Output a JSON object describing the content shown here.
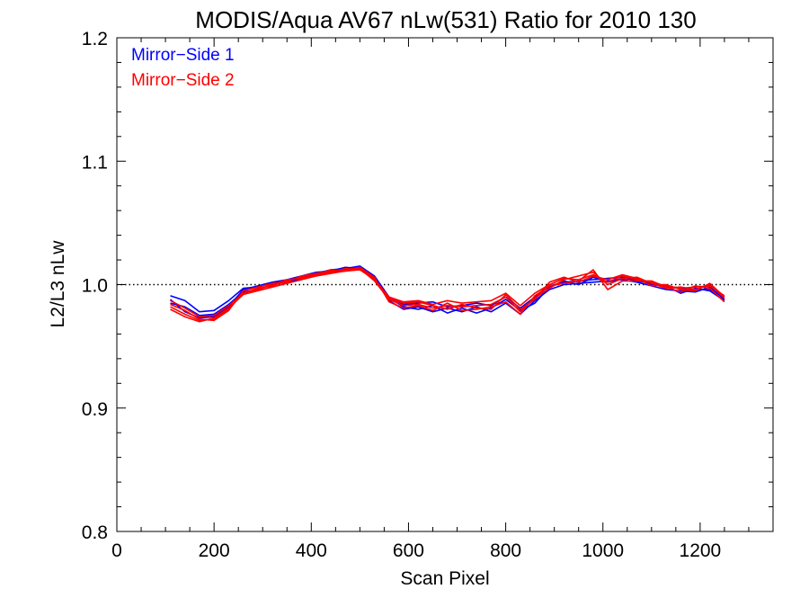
{
  "chart_data": {
    "type": "line",
    "title": "MODIS/Aqua AV67 nLw(531) Ratio for 2010 130",
    "xlabel": "Scan Pixel",
    "ylabel": "L2/L3 nLw",
    "xlim": [
      0,
      1350
    ],
    "ylim": [
      0.8,
      1.2
    ],
    "x_ticks": [
      0,
      200,
      400,
      600,
      800,
      1000,
      1200
    ],
    "y_ticks": [
      0.8,
      0.9,
      1.0,
      1.1,
      1.2
    ],
    "x_tick_labels": [
      "0",
      "200",
      "400",
      "600",
      "800",
      "1000",
      "1200"
    ],
    "y_tick_labels": [
      "0.8",
      "0.9",
      "1.0",
      "1.1",
      "1.2"
    ],
    "reference_line": {
      "y": 1.0,
      "style": "dotted"
    },
    "grid": false,
    "legend_position": "top-left",
    "legend": [
      {
        "label": "Mirror−Side 1",
        "color": "#0000ff"
      },
      {
        "label": "Mirror−Side 2",
        "color": "#ff0000"
      }
    ],
    "x": [
      110,
      140,
      170,
      200,
      230,
      260,
      290,
      320,
      350,
      380,
      410,
      440,
      470,
      500,
      530,
      560,
      590,
      620,
      650,
      680,
      710,
      740,
      770,
      800,
      830,
      860,
      890,
      920,
      950,
      980,
      1010,
      1040,
      1070,
      1100,
      1130,
      1160,
      1190,
      1220,
      1250
    ],
    "series": [
      {
        "color": "#0000ff",
        "values": [
          0.991,
          0.987,
          0.978,
          0.979,
          0.987,
          0.997,
          0.998,
          1.001,
          1.003,
          1.006,
          1.009,
          1.012,
          1.013,
          1.015,
          1.007,
          0.99,
          0.984,
          0.985,
          0.986,
          0.982,
          0.983,
          0.985,
          0.983,
          0.99,
          0.981,
          0.99,
          0.999,
          1.002,
          1.003,
          1.004,
          1.005,
          1.006,
          1.003,
          1.001,
          0.998,
          0.997,
          0.996,
          0.996,
          0.99
        ]
      },
      {
        "color": "#0000ff",
        "values": [
          0.985,
          0.982,
          0.975,
          0.976,
          0.984,
          0.994,
          0.996,
          1.0,
          1.002,
          1.005,
          1.008,
          1.01,
          1.012,
          1.014,
          1.005,
          0.987,
          0.98,
          0.982,
          0.978,
          0.981,
          0.978,
          0.982,
          0.978,
          0.985,
          0.976,
          0.987,
          0.996,
          1.0,
          1.001,
          1.002,
          1.003,
          1.004,
          1.002,
          0.999,
          0.996,
          0.995,
          0.994,
          0.998,
          0.988
        ]
      },
      {
        "color": "#0000ff",
        "values": [
          0.988,
          0.978,
          0.973,
          0.974,
          0.982,
          0.996,
          0.999,
          1.002,
          1.004,
          1.007,
          1.01,
          1.011,
          1.014,
          1.013,
          1.006,
          0.989,
          0.982,
          0.98,
          0.983,
          0.977,
          0.981,
          0.977,
          0.981,
          0.988,
          0.979,
          0.985,
          0.998,
          1.003,
          1.0,
          1.006,
          1.002,
          1.005,
          1.004,
          1.0,
          0.999,
          0.993,
          0.997,
          0.995,
          0.987
        ]
      },
      {
        "color": "#ff0000",
        "values": [
          0.982,
          0.976,
          0.971,
          0.972,
          0.98,
          0.993,
          0.997,
          0.999,
          1.003,
          1.006,
          1.008,
          1.01,
          1.013,
          1.012,
          1.004,
          0.99,
          0.986,
          0.987,
          0.984,
          0.987,
          0.985,
          0.986,
          0.987,
          0.993,
          0.983,
          0.993,
          1.0,
          1.005,
          1.004,
          1.008,
          1.002,
          1.007,
          1.004,
          1.002,
          0.999,
          0.997,
          0.998,
          0.999,
          0.991
        ]
      },
      {
        "color": "#ff0000",
        "values": [
          0.98,
          0.974,
          0.97,
          0.973,
          0.981,
          0.992,
          0.995,
          0.998,
          1.001,
          1.004,
          1.007,
          1.009,
          1.011,
          1.013,
          1.003,
          0.988,
          0.983,
          0.984,
          0.981,
          0.983,
          0.982,
          0.983,
          0.984,
          0.99,
          0.978,
          0.989,
          0.997,
          1.004,
          1.007,
          1.01,
          1.0,
          1.005,
          1.006,
          1.001,
          0.997,
          0.998,
          0.996,
          1.0,
          0.989
        ]
      },
      {
        "color": "#ff0000",
        "values": [
          0.984,
          0.979,
          0.972,
          0.971,
          0.979,
          0.995,
          0.998,
          1.001,
          1.002,
          1.007,
          1.009,
          1.011,
          1.012,
          1.014,
          1.006,
          0.986,
          0.981,
          0.983,
          0.979,
          0.985,
          0.979,
          0.98,
          0.982,
          0.986,
          0.976,
          0.991,
          0.999,
          1.001,
          1.003,
          1.012,
          0.996,
          1.003,
          1.003,
          1.003,
          0.998,
          0.994,
          0.999,
          0.997,
          0.986
        ]
      },
      {
        "color": "#ff0000",
        "values": [
          0.987,
          0.981,
          0.974,
          0.975,
          0.983,
          0.993,
          0.996,
          1.0,
          1.004,
          1.005,
          1.008,
          1.012,
          1.011,
          1.012,
          1.005,
          0.989,
          0.985,
          0.986,
          0.983,
          0.98,
          0.984,
          0.981,
          0.98,
          0.992,
          0.98,
          0.988,
          1.002,
          1.006,
          1.002,
          1.007,
          1.004,
          1.008,
          1.005,
          0.999,
          1.0,
          0.996,
          0.995,
          1.001,
          0.99
        ]
      }
    ]
  }
}
